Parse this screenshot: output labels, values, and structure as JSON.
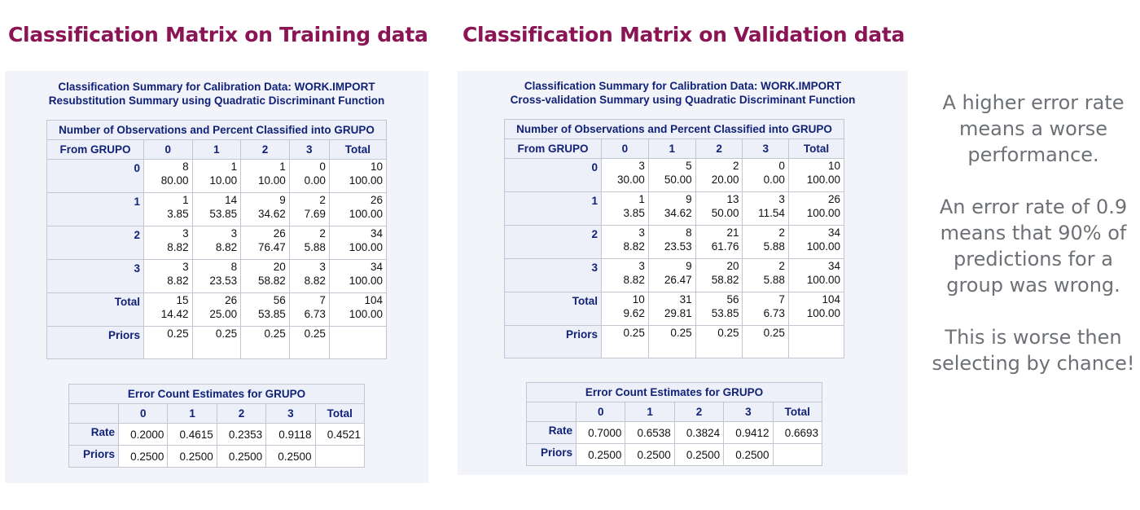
{
  "headings": {
    "left": "Classification Matrix on Training data",
    "right": "Classification Matrix on Validation data"
  },
  "col_labels": [
    "0",
    "1",
    "2",
    "3",
    "Total"
  ],
  "from_label": "From GRUPO",
  "matrix_caption": "Number of Observations and Percent Classified into GRUPO",
  "error_caption": "Error Count Estimates for GRUPO",
  "train": {
    "title1": "Classification Summary for Calibration Data: WORK.IMPORT",
    "title2": "Resubstitution Summary using Quadratic Discriminant Function",
    "rows": [
      {
        "label": "0",
        "counts": [
          "8",
          "1",
          "1",
          "0",
          "10"
        ],
        "pcts": [
          "80.00",
          "10.00",
          "10.00",
          "0.00",
          "100.00"
        ]
      },
      {
        "label": "1",
        "counts": [
          "1",
          "14",
          "9",
          "2",
          "26"
        ],
        "pcts": [
          "3.85",
          "53.85",
          "34.62",
          "7.69",
          "100.00"
        ]
      },
      {
        "label": "2",
        "counts": [
          "3",
          "3",
          "26",
          "2",
          "34"
        ],
        "pcts": [
          "8.82",
          "8.82",
          "76.47",
          "5.88",
          "100.00"
        ]
      },
      {
        "label": "3",
        "counts": [
          "3",
          "8",
          "20",
          "3",
          "34"
        ],
        "pcts": [
          "8.82",
          "23.53",
          "58.82",
          "8.82",
          "100.00"
        ]
      },
      {
        "label": "Total",
        "counts": [
          "15",
          "26",
          "56",
          "7",
          "104"
        ],
        "pcts": [
          "14.42",
          "25.00",
          "53.85",
          "6.73",
          "100.00"
        ]
      }
    ],
    "priors": {
      "label": "Priors",
      "values": [
        "0.25",
        "0.25",
        "0.25",
        "0.25",
        ""
      ]
    },
    "error": {
      "rate": {
        "label": "Rate",
        "values": [
          "0.2000",
          "0.4615",
          "0.2353",
          "0.9118",
          "0.4521"
        ]
      },
      "priors": {
        "label": "Priors",
        "values": [
          "0.2500",
          "0.2500",
          "0.2500",
          "0.2500",
          ""
        ]
      }
    }
  },
  "valid": {
    "title1": "Classification Summary for Calibration Data: WORK.IMPORT",
    "title2": "Cross-validation Summary using Quadratic Discriminant Function",
    "rows": [
      {
        "label": "0",
        "counts": [
          "3",
          "5",
          "2",
          "0",
          "10"
        ],
        "pcts": [
          "30.00",
          "50.00",
          "20.00",
          "0.00",
          "100.00"
        ]
      },
      {
        "label": "1",
        "counts": [
          "1",
          "9",
          "13",
          "3",
          "26"
        ],
        "pcts": [
          "3.85",
          "34.62",
          "50.00",
          "11.54",
          "100.00"
        ]
      },
      {
        "label": "2",
        "counts": [
          "3",
          "8",
          "21",
          "2",
          "34"
        ],
        "pcts": [
          "8.82",
          "23.53",
          "61.76",
          "5.88",
          "100.00"
        ]
      },
      {
        "label": "3",
        "counts": [
          "3",
          "9",
          "20",
          "2",
          "34"
        ],
        "pcts": [
          "8.82",
          "26.47",
          "58.82",
          "5.88",
          "100.00"
        ]
      },
      {
        "label": "Total",
        "counts": [
          "10",
          "31",
          "56",
          "7",
          "104"
        ],
        "pcts": [
          "9.62",
          "29.81",
          "53.85",
          "6.73",
          "100.00"
        ]
      }
    ],
    "priors": {
      "label": "Priors",
      "values": [
        "0.25",
        "0.25",
        "0.25",
        "0.25",
        ""
      ]
    },
    "error": {
      "rate": {
        "label": "Rate",
        "values": [
          "0.7000",
          "0.6538",
          "0.3824",
          "0.9412",
          "0.6693"
        ]
      },
      "priors": {
        "label": "Priors",
        "values": [
          "0.2500",
          "0.2500",
          "0.2500",
          "0.2500",
          ""
        ]
      }
    }
  },
  "notes": [
    "A higher error rate means a worse performance.",
    "An error rate of 0.9 means that 90% of predictions for a group was wrong.",
    "This is worse then selecting by chance!"
  ],
  "colors": {
    "heading": "#8a1454",
    "title": "#112277",
    "note": "#6d7175"
  }
}
